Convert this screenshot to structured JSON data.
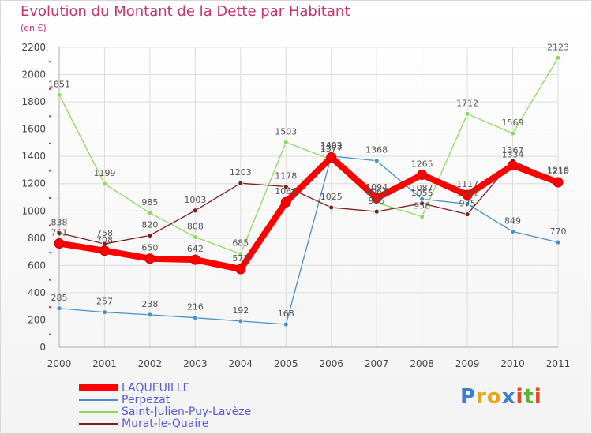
{
  "title": "Evolution du Montant de la Dette par Habitant",
  "subtitle": "(en €)",
  "colors": {
    "title": "#c8336e",
    "grid": "#dcdcdc",
    "axis_text": "#444444",
    "label_text": "#555555",
    "legend_text": "#5a5ad6"
  },
  "chart_data": {
    "type": "line",
    "x": [
      "2000",
      "2001",
      "2002",
      "2003",
      "2004",
      "2005",
      "2006",
      "2007",
      "2008",
      "2009",
      "2010",
      "2011"
    ],
    "ylim": [
      0,
      2200
    ],
    "yticks": [
      "0",
      "200",
      "400",
      "600",
      "800",
      "1000",
      "1200",
      "1400",
      "1600",
      "1800",
      "2000",
      "2200"
    ],
    "grid": true,
    "legend_position": "bottom-left",
    "series": [
      {
        "name": "LAQUEUILLE",
        "color": "#ff0000",
        "values": [
          761,
          708,
          650,
          642,
          573,
          1064,
          1393,
          1094,
          1265,
          1117,
          1334,
          1210
        ]
      },
      {
        "name": "Perpezat",
        "color": "#4a90c8",
        "values": [
          285,
          257,
          238,
          216,
          192,
          168,
          1402,
          1368,
          1087,
          1051,
          849,
          770
        ]
      },
      {
        "name": "Saint-Julien-Puy-Lavèze",
        "color": "#8fd860",
        "values": [
          1851,
          1199,
          985,
          808,
          685,
          1503,
          1377,
          1061,
          958,
          1712,
          1569,
          2123
        ]
      },
      {
        "name": "Murat-le-Quaire",
        "color": "#7a1e1e",
        "values": [
          838,
          758,
          820,
          1003,
          1203,
          1178,
          1025,
          995,
          1055,
          975,
          1367,
          1219
        ]
      }
    ]
  },
  "legend": [
    {
      "label": "LAQUEUILLE"
    },
    {
      "label": "Perpezat"
    },
    {
      "label": "Saint-Julien-Puy-Lavèze"
    },
    {
      "label": "Murat-le-Quaire"
    }
  ],
  "logo": {
    "letters": [
      "P",
      "r",
      "o",
      "x",
      "i",
      "t",
      "i"
    ],
    "colors": [
      "#3b7fd1",
      "#e6a817",
      "#e6a817",
      "#3b7fd1",
      "#e24a2b",
      "#59b33c",
      "#e24a2b"
    ]
  }
}
